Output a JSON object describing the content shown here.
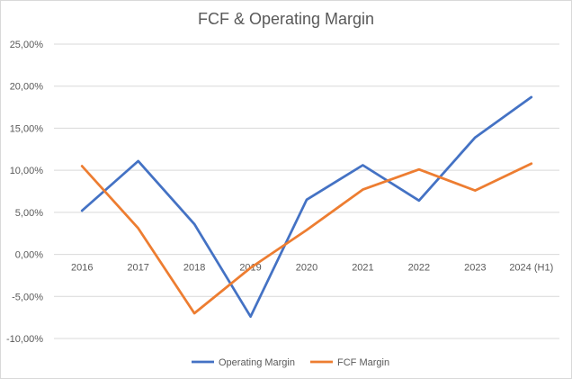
{
  "chart_data": {
    "type": "line",
    "title": "FCF & Operating Margin",
    "xlabel": "",
    "ylabel": "",
    "categories": [
      "2016",
      "2017",
      "2018",
      "2019",
      "2020",
      "2021",
      "2022",
      "2023",
      "2024 (H1)"
    ],
    "ylim": [
      -0.1,
      0.25
    ],
    "yticks": [
      -0.1,
      -0.05,
      0.0,
      0.05,
      0.1,
      0.15,
      0.2,
      0.25
    ],
    "ytick_labels": [
      "-10,00%",
      "-5,00%",
      "0,00%",
      "5,00%",
      "10,00%",
      "15,00%",
      "20,00%",
      "25,00%"
    ],
    "grid": true,
    "legend_position": "bottom",
    "series": [
      {
        "name": "Operating Margin",
        "color": "#4472c4",
        "values": [
          0.052,
          0.111,
          0.036,
          -0.074,
          0.065,
          0.106,
          0.064,
          0.139,
          0.187
        ]
      },
      {
        "name": "FCF Margin",
        "color": "#ed7d31",
        "values": [
          0.105,
          0.031,
          -0.07,
          -0.016,
          0.029,
          0.077,
          0.101,
          0.076,
          0.108
        ]
      }
    ]
  }
}
